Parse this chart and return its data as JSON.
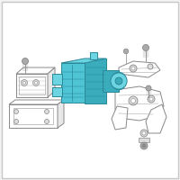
{
  "bg_color": "#f2f2f2",
  "border_color": "#c8c8c8",
  "unit_fill": "#4ec4d4",
  "unit_stroke": "#2a8898",
  "unit_highlight": "#6dd4e2",
  "unit_dark": "#3aacbc",
  "outline_color": "#888888",
  "outline_fill": "white",
  "outline_detail": "#aaaaaa",
  "screw_fill": "#aaaaaa",
  "fig_width": 2.0,
  "fig_height": 2.0,
  "dpi": 100
}
